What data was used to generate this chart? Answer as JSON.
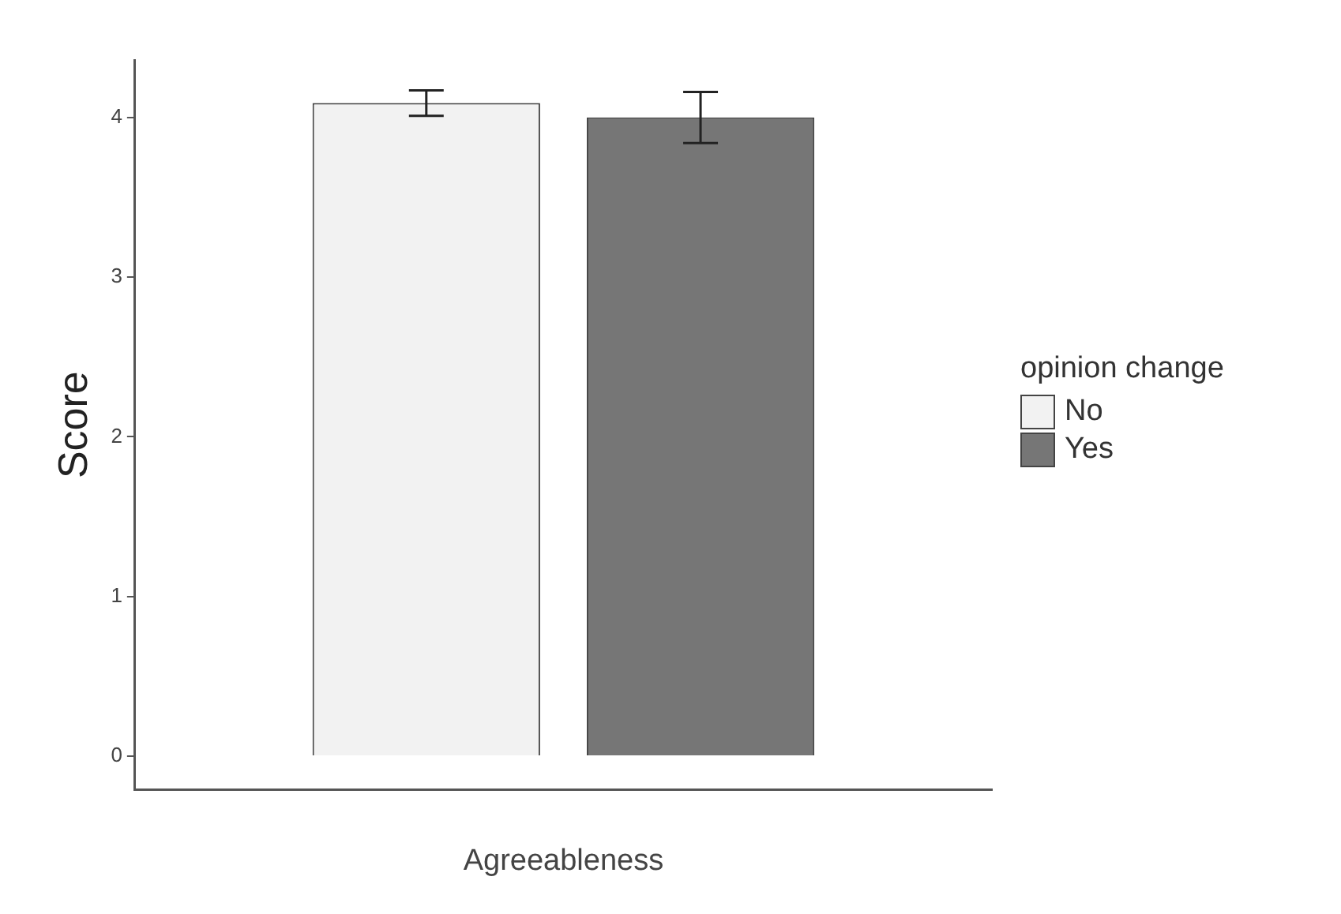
{
  "chart_data": {
    "type": "bar",
    "ylabel": "Score",
    "xlabel": "Agreeableness",
    "legend_title": "opinion change",
    "categories": [
      null
    ],
    "ylim": [
      -0.21,
      4.36
    ],
    "yticks": [
      0,
      1,
      2,
      3,
      4
    ],
    "grid": false,
    "legend": "right",
    "tick_labels": "y",
    "series": [
      {
        "name": "No",
        "color": "#f2f2f2",
        "values": [
          4.09
        ],
        "errors": [
          [
            4.01,
            4.17
          ]
        ]
      },
      {
        "name": "Yes",
        "color": "#767676",
        "values": [
          4.0
        ],
        "errors": [
          [
            3.84,
            4.16
          ]
        ]
      }
    ]
  }
}
